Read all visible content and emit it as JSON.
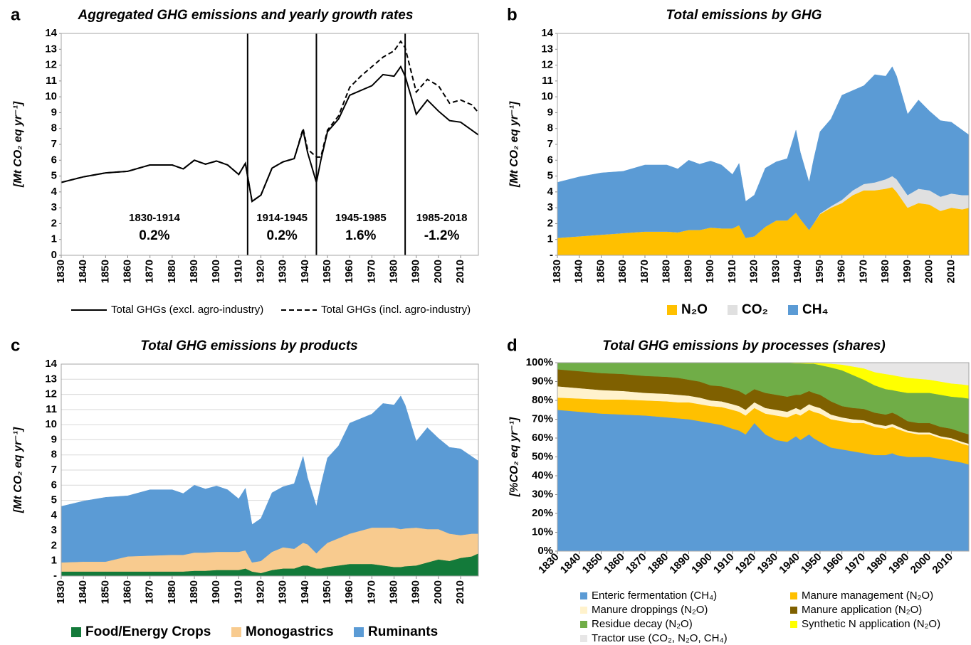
{
  "chart_data": [
    {
      "type": "line",
      "panel_label": "a",
      "title": "Aggregated GHG emissions and yearly growth rates",
      "y_label": "[Mt CO₂ eq yr⁻¹]",
      "x": [
        1830,
        1840,
        1850,
        1860,
        1870,
        1880,
        1885,
        1890,
        1895,
        1900,
        1905,
        1910,
        1913,
        1916,
        1920,
        1925,
        1930,
        1935,
        1939,
        1941,
        1945,
        1947,
        1950,
        1955,
        1960,
        1965,
        1970,
        1975,
        1980,
        1983,
        1985,
        1990,
        1995,
        2000,
        2005,
        2010,
        2015,
        2018
      ],
      "series": [
        {
          "name": "Total GHGs (excl. agro-industry)",
          "color": "#000000",
          "style": "solid",
          "values": [
            4.6,
            4.95,
            5.2,
            5.3,
            5.7,
            5.7,
            5.45,
            6.0,
            5.75,
            5.95,
            5.7,
            5.1,
            5.8,
            3.4,
            3.8,
            5.5,
            5.9,
            6.1,
            7.9,
            6.5,
            4.6,
            6.0,
            7.8,
            8.6,
            10.1,
            10.4,
            10.7,
            11.4,
            11.3,
            11.9,
            11.3,
            8.9,
            9.8,
            9.1,
            8.5,
            8.4,
            7.9,
            7.6
          ]
        },
        {
          "name": "Total GHGs (incl. agro-industry)",
          "color": "#000000",
          "style": "dashed",
          "values": [
            4.6,
            4.95,
            5.2,
            5.3,
            5.7,
            5.7,
            5.45,
            6.0,
            5.75,
            5.95,
            5.7,
            5.1,
            5.8,
            3.4,
            3.8,
            5.5,
            5.9,
            6.1,
            8.0,
            6.7,
            6.2,
            6.2,
            7.9,
            8.8,
            10.6,
            11.3,
            11.9,
            12.5,
            12.9,
            13.5,
            13.1,
            10.3,
            11.1,
            10.7,
            9.6,
            9.8,
            9.5,
            9.0
          ]
        }
      ],
      "dividers": [
        1914,
        1945,
        1985
      ],
      "annotations": [
        {
          "period": "1830-1914",
          "rate": "0.2%"
        },
        {
          "period": "1914-1945",
          "rate": "0.2%"
        },
        {
          "period": "1945-1985",
          "rate": "1.6%"
        },
        {
          "period": "1985-2018",
          "rate": "-1.2%"
        }
      ],
      "xlim": [
        1830,
        2018
      ],
      "xticks": [
        1830,
        1840,
        1850,
        1860,
        1870,
        1880,
        1890,
        1900,
        1910,
        1920,
        1930,
        1940,
        1950,
        1960,
        1970,
        1980,
        1990,
        2000,
        2010
      ],
      "ylim": [
        0,
        14
      ],
      "yticks": [
        0,
        1,
        2,
        3,
        4,
        5,
        6,
        7,
        8,
        9,
        10,
        11,
        12,
        13,
        14
      ],
      "grid": false,
      "legend": "bottom"
    },
    {
      "type": "area",
      "stacked": true,
      "panel_label": "b",
      "title": "Total emissions by GHG",
      "y_label": "[Mt CO₂ eq yr⁻¹]",
      "x": [
        1830,
        1840,
        1850,
        1860,
        1870,
        1880,
        1885,
        1890,
        1895,
        1900,
        1905,
        1910,
        1913,
        1916,
        1920,
        1925,
        1930,
        1935,
        1939,
        1941,
        1945,
        1947,
        1950,
        1955,
        1960,
        1965,
        1970,
        1975,
        1980,
        1983,
        1985,
        1990,
        1995,
        2000,
        2005,
        2010,
        2015,
        2018
      ],
      "series": [
        {
          "name": "N₂O",
          "color": "#ffc000",
          "values": [
            1.1,
            1.2,
            1.3,
            1.4,
            1.5,
            1.5,
            1.45,
            1.6,
            1.6,
            1.75,
            1.7,
            1.7,
            1.9,
            1.1,
            1.2,
            1.8,
            2.2,
            2.2,
            2.7,
            2.3,
            1.6,
            2.0,
            2.6,
            3.0,
            3.3,
            3.8,
            4.1,
            4.1,
            4.2,
            4.3,
            4.0,
            3.0,
            3.3,
            3.2,
            2.8,
            3.0,
            2.9,
            3.0
          ]
        },
        {
          "name": "CO₂",
          "color": "#e0e0e0",
          "values": [
            0,
            0,
            0,
            0,
            0,
            0,
            0,
            0,
            0,
            0,
            0,
            0,
            0,
            0,
            0,
            0,
            0,
            0,
            0,
            0,
            0,
            0,
            0.05,
            0.1,
            0.2,
            0.3,
            0.4,
            0.5,
            0.6,
            0.7,
            0.8,
            0.8,
            0.9,
            0.9,
            0.9,
            0.9,
            0.9,
            0.8
          ]
        },
        {
          "name": "CH₄",
          "color": "#5b9bd5",
          "values": [
            3.5,
            3.75,
            3.9,
            3.9,
            4.2,
            4.2,
            4.0,
            4.4,
            4.15,
            4.2,
            4.0,
            3.4,
            3.9,
            2.3,
            2.6,
            3.7,
            3.7,
            3.9,
            5.2,
            4.2,
            3.0,
            4.0,
            5.15,
            5.5,
            6.6,
            6.3,
            6.2,
            6.8,
            6.5,
            6.9,
            6.5,
            5.1,
            5.6,
            5.0,
            4.8,
            4.5,
            4.1,
            3.8
          ]
        }
      ],
      "xlim": [
        1830,
        2018
      ],
      "xticks": [
        1830,
        1840,
        1850,
        1860,
        1870,
        1880,
        1890,
        1900,
        1910,
        1920,
        1930,
        1940,
        1950,
        1960,
        1970,
        1980,
        1990,
        2000,
        2010
      ],
      "ylim": [
        0,
        14
      ],
      "yticks": [
        {
          "value": 0,
          "label": "-"
        },
        1,
        2,
        3,
        4,
        5,
        6,
        7,
        8,
        9,
        10,
        11,
        12,
        13,
        14
      ],
      "grid": false,
      "legend": "bottom"
    },
    {
      "type": "area",
      "stacked": true,
      "panel_label": "c",
      "title": "Total GHG emissions by products",
      "y_label": "[Mt CO₂ eq yr⁻¹]",
      "x": [
        1830,
        1840,
        1850,
        1860,
        1870,
        1880,
        1885,
        1890,
        1895,
        1900,
        1905,
        1910,
        1913,
        1916,
        1920,
        1925,
        1930,
        1935,
        1939,
        1941,
        1945,
        1947,
        1950,
        1955,
        1960,
        1965,
        1970,
        1975,
        1980,
        1983,
        1985,
        1990,
        1995,
        2000,
        2005,
        2010,
        2015,
        2018
      ],
      "series": [
        {
          "name": "Food/Energy Crops",
          "color": "#137a3a",
          "values": [
            0.3,
            0.3,
            0.3,
            0.3,
            0.3,
            0.3,
            0.3,
            0.35,
            0.35,
            0.4,
            0.4,
            0.4,
            0.5,
            0.3,
            0.2,
            0.4,
            0.5,
            0.5,
            0.7,
            0.7,
            0.5,
            0.5,
            0.6,
            0.7,
            0.8,
            0.8,
            0.8,
            0.7,
            0.6,
            0.6,
            0.65,
            0.7,
            0.9,
            1.1,
            1.0,
            1.2,
            1.3,
            1.5
          ]
        },
        {
          "name": "Monogastrics",
          "color": "#f8cb8f",
          "values": [
            0.6,
            0.65,
            0.65,
            1.0,
            1.05,
            1.1,
            1.1,
            1.2,
            1.2,
            1.2,
            1.2,
            1.2,
            1.2,
            0.6,
            0.8,
            1.2,
            1.4,
            1.3,
            1.5,
            1.4,
            1.0,
            1.3,
            1.6,
            1.8,
            2.0,
            2.2,
            2.4,
            2.5,
            2.6,
            2.5,
            2.5,
            2.5,
            2.2,
            2.0,
            1.8,
            1.5,
            1.5,
            1.3
          ]
        },
        {
          "name": "Ruminants",
          "color": "#5b9bd5",
          "values": [
            3.7,
            4.0,
            4.25,
            4.0,
            4.35,
            4.3,
            4.05,
            4.45,
            4.2,
            4.35,
            4.1,
            3.5,
            4.1,
            2.5,
            2.8,
            3.9,
            4.0,
            4.3,
            5.7,
            4.4,
            3.1,
            4.2,
            5.6,
            6.1,
            7.3,
            7.4,
            7.5,
            8.2,
            8.1,
            8.8,
            8.15,
            5.7,
            6.7,
            6.0,
            5.7,
            5.7,
            5.1,
            4.8
          ]
        }
      ],
      "xlim": [
        1830,
        2018
      ],
      "xticks": [
        1830,
        1840,
        1850,
        1860,
        1870,
        1880,
        1890,
        1900,
        1910,
        1920,
        1930,
        1940,
        1950,
        1960,
        1970,
        1980,
        1990,
        2000,
        2010
      ],
      "ylim": [
        0,
        14
      ],
      "yticks": [
        {
          "value": 0,
          "label": "-"
        },
        1,
        2,
        3,
        4,
        5,
        6,
        7,
        8,
        9,
        10,
        11,
        12,
        13,
        14
      ],
      "grid": true,
      "legend": "bottom"
    },
    {
      "type": "area",
      "stacked": true,
      "panel_label": "d",
      "title": "Total GHG emissions by processes (shares)",
      "y_label": "[%CO₂ eq yr⁻¹]",
      "x": [
        1830,
        1840,
        1850,
        1860,
        1870,
        1880,
        1885,
        1890,
        1895,
        1900,
        1905,
        1910,
        1913,
        1916,
        1920,
        1925,
        1930,
        1935,
        1939,
        1941,
        1945,
        1947,
        1950,
        1955,
        1960,
        1965,
        1970,
        1975,
        1980,
        1983,
        1985,
        1990,
        1995,
        2000,
        2005,
        2010,
        2015,
        2018
      ],
      "series": [
        {
          "name": "Enteric fermentation (CH₄)",
          "color": "#5b9bd5",
          "values": [
            75,
            74,
            73,
            72.5,
            72,
            71,
            70.5,
            70,
            69,
            68,
            67,
            65,
            64,
            62,
            68,
            62,
            59,
            58,
            61,
            59,
            62,
            60,
            58,
            55,
            54,
            53,
            52,
            51,
            51,
            52,
            51,
            50,
            50,
            50,
            49,
            48,
            47,
            46
          ]
        },
        {
          "name": "Manure management (N₂O)",
          "color": "#ffc000",
          "values": [
            6.5,
            7,
            7.5,
            8,
            8,
            8.5,
            8.5,
            9,
            9,
            9,
            9.5,
            10,
            10,
            10,
            8,
            11,
            13,
            13,
            12,
            13,
            13,
            14,
            15,
            15,
            15,
            15,
            16,
            15,
            14,
            14,
            14,
            13,
            12,
            12,
            11,
            11,
            10,
            10
          ]
        },
        {
          "name": "Manure droppings (N₂O)",
          "color": "#fff2cc",
          "values": [
            6,
            5.5,
            5,
            4.5,
            4,
            4,
            4,
            3.5,
            3.5,
            3,
            3,
            3,
            3,
            3,
            3,
            3,
            3,
            3,
            3,
            3,
            3,
            3,
            3,
            2.5,
            2,
            2,
            1.5,
            1.5,
            1.5,
            1.5,
            1.5,
            1,
            1,
            1,
            1,
            1,
            1,
            1
          ]
        },
        {
          "name": "Manure application (N₂O)",
          "color": "#7f6000",
          "values": [
            9,
            9,
            9,
            9,
            9,
            9,
            9,
            8.5,
            8.5,
            8,
            8,
            8,
            8,
            8,
            7,
            8,
            8,
            8,
            7,
            8,
            7,
            7,
            7,
            7,
            6,
            6,
            6,
            6,
            6,
            6,
            6,
            5,
            5,
            5,
            5,
            5,
            5,
            5
          ]
        },
        {
          "name": "Residue decay (N₂O)",
          "color": "#70ad47",
          "values": [
            3.5,
            4.5,
            5.5,
            6,
            7,
            7.5,
            8,
            9,
            10,
            12,
            12.5,
            14,
            15,
            17,
            14,
            16,
            17,
            18,
            16.7,
            16.7,
            14.5,
            15.5,
            15.8,
            18,
            19,
            17.5,
            15.5,
            14.5,
            13.5,
            12,
            12.5,
            15,
            16,
            16,
            17,
            17,
            18.5,
            19
          ]
        },
        {
          "name": "Synthetic N application (N₂O)",
          "color": "#ffff00",
          "values": [
            0,
            0,
            0,
            0,
            0,
            0,
            0,
            0,
            0,
            0,
            0,
            0,
            0,
            0,
            0,
            0,
            0,
            0,
            0.3,
            0.3,
            0.5,
            0.5,
            1,
            2,
            3,
            4.5,
            6,
            7,
            8,
            8,
            8,
            8,
            7.5,
            7,
            7,
            7,
            7,
            7
          ]
        },
        {
          "name": "Tractor use (CO₂, N₂O,  CH₄)",
          "color": "#e7e6e6",
          "values": [
            0,
            0,
            0,
            0,
            0,
            0,
            0,
            0,
            0,
            0,
            0,
            0,
            0,
            0,
            0,
            0,
            0,
            0,
            0,
            0,
            0,
            0,
            0.2,
            0.5,
            1,
            2,
            3,
            5,
            6,
            6.5,
            7,
            8,
            8.5,
            9,
            10,
            11,
            11.5,
            12
          ]
        }
      ],
      "xlim": [
        1830,
        2018
      ],
      "xticks": [
        1830,
        1840,
        1850,
        1860,
        1870,
        1880,
        1890,
        1900,
        1910,
        1920,
        1930,
        1940,
        1950,
        1960,
        1970,
        1980,
        1990,
        2000,
        2010
      ],
      "ylim": [
        0,
        100
      ],
      "yticks": [
        {
          "value": 0,
          "label": "0%"
        },
        {
          "value": 10,
          "label": "10%"
        },
        {
          "value": 20,
          "label": "20%"
        },
        {
          "value": 30,
          "label": "30%"
        },
        {
          "value": 40,
          "label": "40%"
        },
        {
          "value": 50,
          "label": "50%"
        },
        {
          "value": 60,
          "label": "60%"
        },
        {
          "value": 70,
          "label": "70%"
        },
        {
          "value": 80,
          "label": "80%"
        },
        {
          "value": 90,
          "label": "90%"
        },
        {
          "value": 100,
          "label": "100%"
        }
      ],
      "grid": false,
      "legend": "bottom"
    }
  ]
}
